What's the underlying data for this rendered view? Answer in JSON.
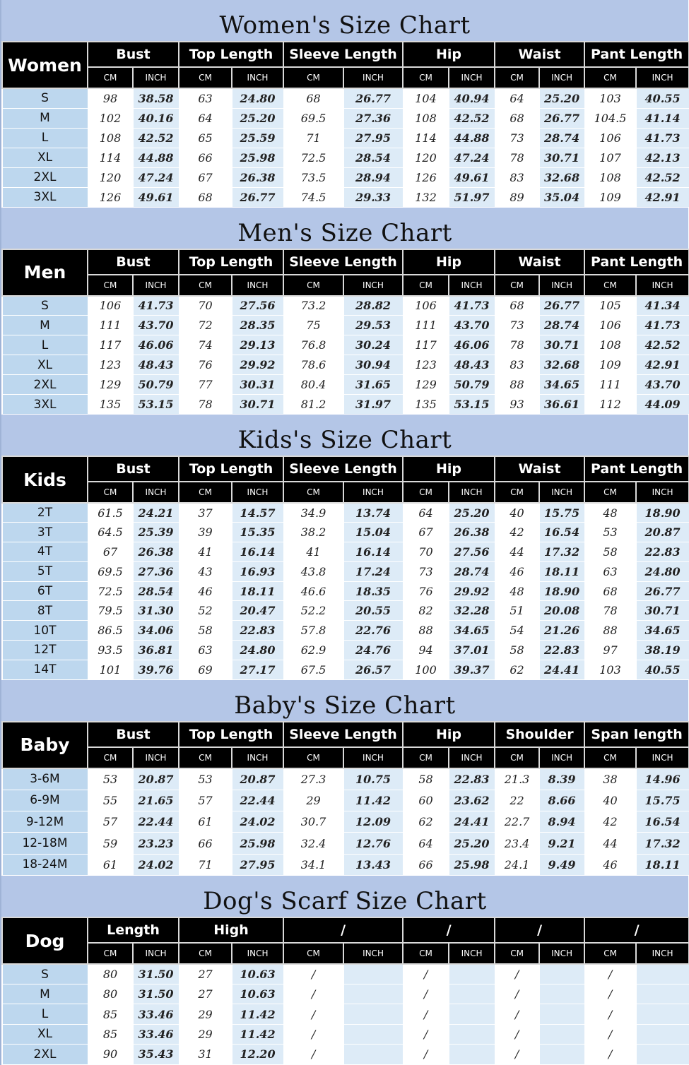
{
  "colors": {
    "title_band": "#b4c6e7",
    "size_col": "#bdd7ee",
    "inch_col": "#ddebf7",
    "header": "#000000"
  },
  "units": {
    "cm": "CM",
    "inch": "INCH"
  },
  "sections": [
    {
      "title": "Women's Size Chart",
      "label": "Women",
      "columns": [
        "Bust",
        "Top Length",
        "Sleeve Length",
        "Hip",
        "Waist",
        "Pant Length"
      ],
      "rows": [
        {
          "size": "S",
          "values": [
            "98",
            "38.58",
            "63",
            "24.80",
            "68",
            "26.77",
            "104",
            "40.94",
            "64",
            "25.20",
            "103",
            "40.55"
          ]
        },
        {
          "size": "M",
          "values": [
            "102",
            "40.16",
            "64",
            "25.20",
            "69.5",
            "27.36",
            "108",
            "42.52",
            "68",
            "26.77",
            "104.5",
            "41.14"
          ]
        },
        {
          "size": "L",
          "values": [
            "108",
            "42.52",
            "65",
            "25.59",
            "71",
            "27.95",
            "114",
            "44.88",
            "73",
            "28.74",
            "106",
            "41.73"
          ]
        },
        {
          "size": "XL",
          "values": [
            "114",
            "44.88",
            "66",
            "25.98",
            "72.5",
            "28.54",
            "120",
            "47.24",
            "78",
            "30.71",
            "107",
            "42.13"
          ]
        },
        {
          "size": "2XL",
          "values": [
            "120",
            "47.24",
            "67",
            "26.38",
            "73.5",
            "28.94",
            "126",
            "49.61",
            "83",
            "32.68",
            "108",
            "42.52"
          ]
        },
        {
          "size": "3XL",
          "values": [
            "126",
            "49.61",
            "68",
            "26.77",
            "74.5",
            "29.33",
            "132",
            "51.97",
            "89",
            "35.04",
            "109",
            "42.91"
          ]
        }
      ]
    },
    {
      "title": "Men's Size Chart",
      "label": "Men",
      "columns": [
        "Bust",
        "Top Length",
        "Sleeve Length",
        "Hip",
        "Waist",
        "Pant Length"
      ],
      "rows": [
        {
          "size": "S",
          "values": [
            "106",
            "41.73",
            "70",
            "27.56",
            "73.2",
            "28.82",
            "106",
            "41.73",
            "68",
            "26.77",
            "105",
            "41.34"
          ]
        },
        {
          "size": "M",
          "values": [
            "111",
            "43.70",
            "72",
            "28.35",
            "75",
            "29.53",
            "111",
            "43.70",
            "73",
            "28.74",
            "106",
            "41.73"
          ]
        },
        {
          "size": "L",
          "values": [
            "117",
            "46.06",
            "74",
            "29.13",
            "76.8",
            "30.24",
            "117",
            "46.06",
            "78",
            "30.71",
            "108",
            "42.52"
          ]
        },
        {
          "size": "XL",
          "values": [
            "123",
            "48.43",
            "76",
            "29.92",
            "78.6",
            "30.94",
            "123",
            "48.43",
            "83",
            "32.68",
            "109",
            "42.91"
          ]
        },
        {
          "size": "2XL",
          "values": [
            "129",
            "50.79",
            "77",
            "30.31",
            "80.4",
            "31.65",
            "129",
            "50.79",
            "88",
            "34.65",
            "111",
            "43.70"
          ]
        },
        {
          "size": "3XL",
          "values": [
            "135",
            "53.15",
            "78",
            "30.71",
            "81.2",
            "31.97",
            "135",
            "53.15",
            "93",
            "36.61",
            "112",
            "44.09"
          ]
        }
      ]
    },
    {
      "title": "Kids's  Size Chart",
      "label": "Kids",
      "columns": [
        "Bust",
        "Top Length",
        "Sleeve Length",
        "Hip",
        "Waist",
        "Pant Length"
      ],
      "rows": [
        {
          "size": "2T",
          "values": [
            "61.5",
            "24.21",
            "37",
            "14.57",
            "34.9",
            "13.74",
            "64",
            "25.20",
            "40",
            "15.75",
            "48",
            "18.90"
          ]
        },
        {
          "size": "3T",
          "values": [
            "64.5",
            "25.39",
            "39",
            "15.35",
            "38.2",
            "15.04",
            "67",
            "26.38",
            "42",
            "16.54",
            "53",
            "20.87"
          ]
        },
        {
          "size": "4T",
          "values": [
            "67",
            "26.38",
            "41",
            "16.14",
            "41",
            "16.14",
            "70",
            "27.56",
            "44",
            "17.32",
            "58",
            "22.83"
          ]
        },
        {
          "size": "5T",
          "values": [
            "69.5",
            "27.36",
            "43",
            "16.93",
            "43.8",
            "17.24",
            "73",
            "28.74",
            "46",
            "18.11",
            "63",
            "24.80"
          ]
        },
        {
          "size": "6T",
          "values": [
            "72.5",
            "28.54",
            "46",
            "18.11",
            "46.6",
            "18.35",
            "76",
            "29.92",
            "48",
            "18.90",
            "68",
            "26.77"
          ]
        },
        {
          "size": "8T",
          "values": [
            "79.5",
            "31.30",
            "52",
            "20.47",
            "52.2",
            "20.55",
            "82",
            "32.28",
            "51",
            "20.08",
            "78",
            "30.71"
          ]
        },
        {
          "size": "10T",
          "values": [
            "86.5",
            "34.06",
            "58",
            "22.83",
            "57.8",
            "22.76",
            "88",
            "34.65",
            "54",
            "21.26",
            "88",
            "34.65"
          ]
        },
        {
          "size": "12T",
          "values": [
            "93.5",
            "36.81",
            "63",
            "24.80",
            "62.9",
            "24.76",
            "94",
            "37.01",
            "58",
            "22.83",
            "97",
            "38.19"
          ]
        },
        {
          "size": "14T",
          "values": [
            "101",
            "39.76",
            "69",
            "27.17",
            "67.5",
            "26.57",
            "100",
            "39.37",
            "62",
            "24.41",
            "103",
            "40.55"
          ]
        }
      ]
    },
    {
      "title": "Baby's Size Chart",
      "label": "Baby",
      "columns": [
        "Bust",
        "Top Length",
        "Sleeve Length",
        "Hip",
        "Shoulder",
        "Span length"
      ],
      "rows": [
        {
          "size": "3-6M",
          "values": [
            "53",
            "20.87",
            "53",
            "20.87",
            "27.3",
            "10.75",
            "58",
            "22.83",
            "21.3",
            "8.39",
            "38",
            "14.96"
          ]
        },
        {
          "size": "6-9M",
          "values": [
            "55",
            "21.65",
            "57",
            "22.44",
            "29",
            "11.42",
            "60",
            "23.62",
            "22",
            "8.66",
            "40",
            "15.75"
          ]
        },
        {
          "size": "9-12M",
          "values": [
            "57",
            "22.44",
            "61",
            "24.02",
            "30.7",
            "12.09",
            "62",
            "24.41",
            "22.7",
            "8.94",
            "42",
            "16.54"
          ]
        },
        {
          "size": "12-18M",
          "values": [
            "59",
            "23.23",
            "66",
            "25.98",
            "32.4",
            "12.76",
            "64",
            "25.20",
            "23.4",
            "9.21",
            "44",
            "17.32"
          ]
        },
        {
          "size": "18-24M",
          "values": [
            "61",
            "24.02",
            "71",
            "27.95",
            "34.1",
            "13.43",
            "66",
            "25.98",
            "24.1",
            "9.49",
            "46",
            "18.11"
          ]
        }
      ]
    },
    {
      "title": "Dog's Scarf  Size Chart",
      "label": "Dog",
      "columns": [
        "Length",
        "High",
        "/",
        "/",
        "/",
        "/"
      ],
      "rows": [
        {
          "size": "S",
          "values": [
            "80",
            "31.50",
            "27",
            "10.63",
            "/",
            "",
            "/",
            "",
            "/",
            "",
            "/",
            ""
          ]
        },
        {
          "size": "M",
          "values": [
            "80",
            "31.50",
            "27",
            "10.63",
            "/",
            "",
            "/",
            "",
            "/",
            "",
            "/",
            ""
          ]
        },
        {
          "size": "L",
          "values": [
            "85",
            "33.46",
            "29",
            "11.42",
            "/",
            "",
            "/",
            "",
            "/",
            "",
            "/",
            ""
          ]
        },
        {
          "size": "XL",
          "values": [
            "85",
            "33.46",
            "29",
            "11.42",
            "/",
            "",
            "/",
            "",
            "/",
            "",
            "/",
            ""
          ]
        },
        {
          "size": "2XL",
          "values": [
            "90",
            "35.43",
            "31",
            "12.20",
            "/",
            "",
            "/",
            "",
            "/",
            "",
            "/",
            ""
          ]
        }
      ]
    }
  ]
}
